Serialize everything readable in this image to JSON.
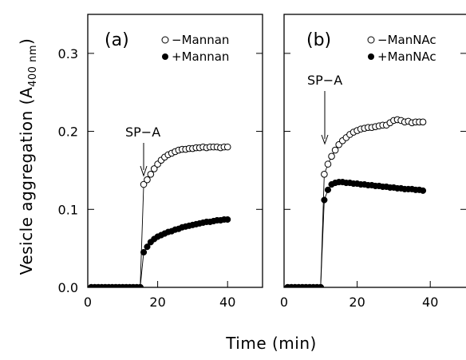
{
  "chart_data": [
    {
      "type": "scatter",
      "panel_label": "(a)",
      "annotation": "SP−A",
      "annotation_x": 15.5,
      "xlim": [
        0,
        50
      ],
      "ylim": [
        0,
        0.35
      ],
      "xticks": [
        0,
        20,
        40
      ],
      "yticks": [
        0.0,
        0.1,
        0.2,
        0.3
      ],
      "xticklabels": [
        "0",
        "20",
        "40"
      ],
      "yticklabels": [
        "0.0",
        "0.1",
        "0.2",
        "0.3"
      ],
      "legend_position": "top-right",
      "series": [
        {
          "name": "−Mannan",
          "marker": "open-circle",
          "x": [
            1,
            2,
            3,
            4,
            5,
            6,
            7,
            8,
            9,
            10,
            11,
            12,
            13,
            14,
            15,
            16,
            17,
            18,
            19,
            20,
            21,
            22,
            23,
            24,
            25,
            26,
            27,
            28,
            29,
            30,
            31,
            32,
            33,
            34,
            35,
            36,
            37,
            38,
            39,
            40
          ],
          "y": [
            0,
            0,
            0,
            0,
            0,
            0,
            0,
            0,
            0,
            0,
            0,
            0,
            0,
            0,
            0,
            0.132,
            0.138,
            0.145,
            0.152,
            0.158,
            0.163,
            0.167,
            0.17,
            0.172,
            0.174,
            0.176,
            0.177,
            0.177,
            0.178,
            0.178,
            0.179,
            0.179,
            0.18,
            0.179,
            0.18,
            0.18,
            0.18,
            0.179,
            0.18,
            0.18
          ]
        },
        {
          "name": "+Mannan",
          "marker": "filled-circle",
          "x": [
            1,
            2,
            3,
            4,
            5,
            6,
            7,
            8,
            9,
            10,
            11,
            12,
            13,
            14,
            15,
            16,
            17,
            18,
            19,
            20,
            21,
            22,
            23,
            24,
            25,
            26,
            27,
            28,
            29,
            30,
            31,
            32,
            33,
            34,
            35,
            36,
            37,
            38,
            39,
            40
          ],
          "y": [
            0,
            0,
            0,
            0,
            0,
            0,
            0,
            0,
            0,
            0,
            0,
            0,
            0,
            0,
            0,
            0.045,
            0.052,
            0.058,
            0.062,
            0.065,
            0.067,
            0.069,
            0.071,
            0.072,
            0.074,
            0.075,
            0.077,
            0.078,
            0.079,
            0.08,
            0.081,
            0.082,
            0.083,
            0.084,
            0.084,
            0.085,
            0.086,
            0.086,
            0.087,
            0.087
          ]
        }
      ]
    },
    {
      "type": "scatter",
      "panel_label": "(b)",
      "annotation": "SP−A",
      "annotation_x": 10.3,
      "xlim": [
        0,
        50
      ],
      "ylim": [
        0,
        0.35
      ],
      "xticks": [
        0,
        20,
        40
      ],
      "yticks": [
        0.0,
        0.1,
        0.2,
        0.3
      ],
      "xticklabels": [
        "0",
        "20",
        "40"
      ],
      "yticklabels": [],
      "legend_position": "top-right",
      "series": [
        {
          "name": "−ManNAc",
          "marker": "open-circle",
          "x": [
            1,
            2,
            3,
            4,
            5,
            6,
            7,
            8,
            9,
            10,
            11,
            12,
            13,
            14,
            15,
            16,
            17,
            18,
            19,
            20,
            21,
            22,
            23,
            24,
            25,
            26,
            27,
            28,
            29,
            30,
            31,
            32,
            33,
            34,
            35,
            36,
            37,
            38
          ],
          "y": [
            0,
            0,
            0,
            0,
            0,
            0,
            0,
            0,
            0,
            0,
            0.145,
            0.158,
            0.168,
            0.176,
            0.183,
            0.188,
            0.192,
            0.196,
            0.199,
            0.201,
            0.203,
            0.204,
            0.205,
            0.205,
            0.206,
            0.207,
            0.208,
            0.208,
            0.211,
            0.214,
            0.215,
            0.214,
            0.212,
            0.213,
            0.211,
            0.212,
            0.212,
            0.212
          ]
        },
        {
          "name": "+ManNAc",
          "marker": "filled-circle",
          "x": [
            1,
            2,
            3,
            4,
            5,
            6,
            7,
            8,
            9,
            10,
            11,
            12,
            13,
            14,
            15,
            16,
            17,
            18,
            19,
            20,
            21,
            22,
            23,
            24,
            25,
            26,
            27,
            28,
            29,
            30,
            31,
            32,
            33,
            34,
            35,
            36,
            37,
            38
          ],
          "y": [
            0,
            0,
            0,
            0,
            0,
            0,
            0,
            0,
            0,
            0,
            0.112,
            0.125,
            0.132,
            0.134,
            0.135,
            0.135,
            0.134,
            0.134,
            0.133,
            0.133,
            0.132,
            0.132,
            0.131,
            0.131,
            0.13,
            0.13,
            0.129,
            0.129,
            0.128,
            0.128,
            0.127,
            0.127,
            0.126,
            0.126,
            0.126,
            0.125,
            0.125,
            0.124
          ]
        }
      ]
    }
  ],
  "shared_ylabel": "Vesicle aggregation (A",
  "shared_ylabel_sub": "400 nm",
  "shared_ylabel_end": ")",
  "shared_xlabel": "Time (min)"
}
